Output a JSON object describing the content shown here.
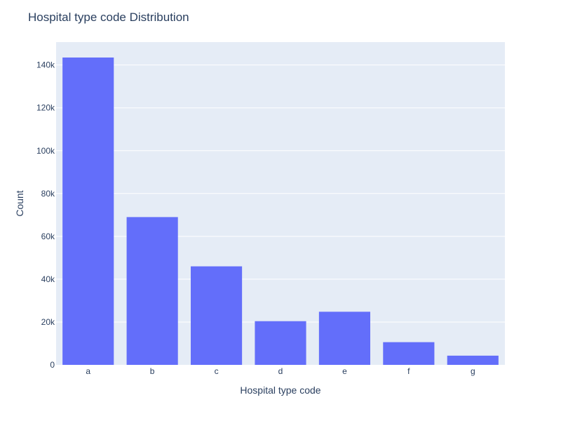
{
  "chart_data": {
    "type": "bar",
    "title": "Hospital type code Distribution",
    "xlabel": "Hospital type code",
    "ylabel": "Count",
    "categories": [
      "a",
      "b",
      "c",
      "d",
      "e",
      "f",
      "g"
    ],
    "values": [
      143500,
      69000,
      46000,
      20400,
      24800,
      10600,
      4300
    ],
    "ylim": [
      0,
      150700
    ],
    "yticks": [
      0,
      20000,
      40000,
      60000,
      80000,
      100000,
      120000,
      140000
    ],
    "ytick_labels": [
      "0",
      "20k",
      "40k",
      "60k",
      "80k",
      "100k",
      "120k",
      "140k"
    ],
    "grid": true,
    "colors": {
      "bar": "#636efa",
      "plot_bg": "#e5ecf6",
      "grid": "#ffffff",
      "text": "#2a3f5f"
    }
  }
}
